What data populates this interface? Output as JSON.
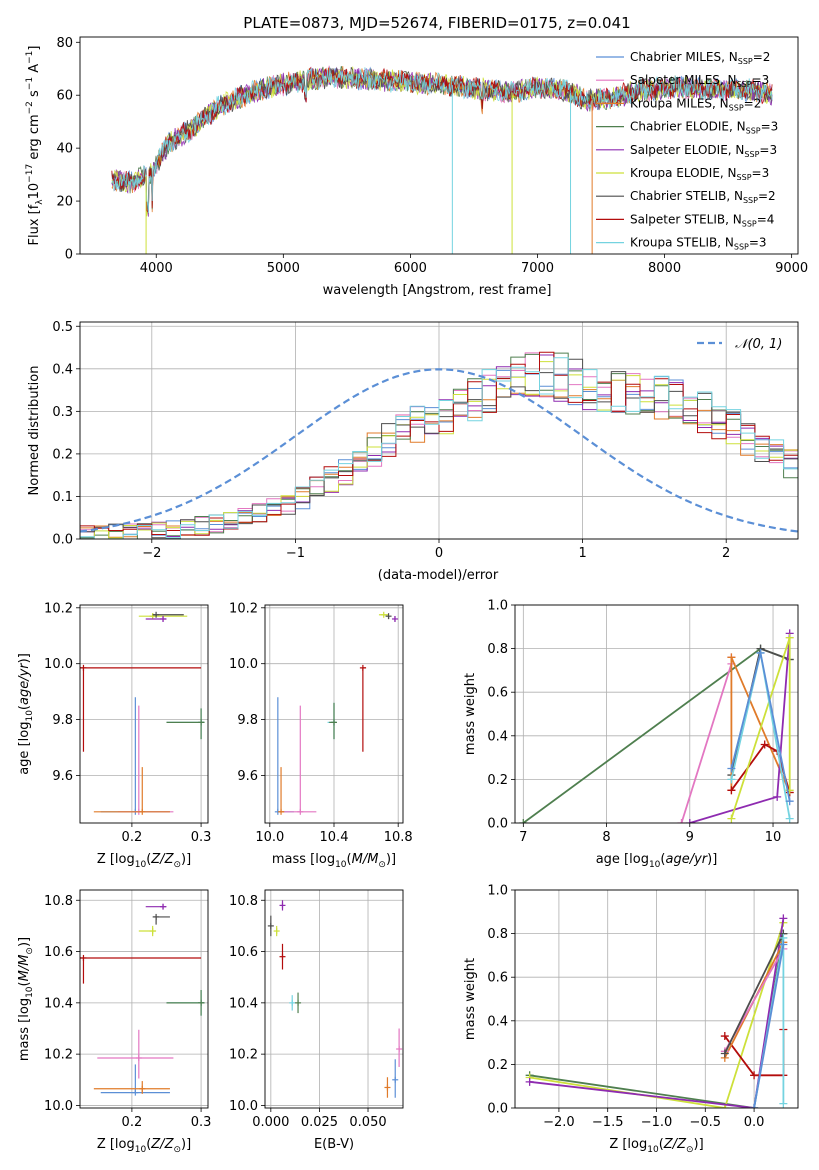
{
  "palette": [
    "#5b8fd6",
    "#e377c2",
    "#e07b2a",
    "#4f7f4f",
    "#8e2bb0",
    "#cde03a",
    "#4d4d4d",
    "#b30c0c",
    "#74d3e0"
  ],
  "chart_data": [
    {
      "id": "spectrum",
      "type": "line",
      "title": "PLATE=0873, MJD=52674, FIBERID=0175, z=0.041",
      "xlabel": "wavelength [Angstrom, rest frame]",
      "ylabel": "Flux [f",
      "xlim": [
        3400,
        9050
      ],
      "ylim": [
        0,
        82
      ],
      "xticks": [
        4000,
        5000,
        6000,
        7000,
        8000,
        9000
      ],
      "yticks": [
        0,
        20,
        40,
        60,
        80
      ],
      "legend_position": "top-right",
      "legend": [
        {
          "name": "Chabrier MILES, N",
          "sub": "SSP",
          "tail": "=2"
        },
        {
          "name": "Salpeter MILES, N",
          "sub": "SSP",
          "tail": "=3"
        },
        {
          "name": "Kroupa MILES, N",
          "sub": "SSP",
          "tail": "=2"
        },
        {
          "name": "Chabrier ELODIE, N",
          "sub": "SSP",
          "tail": "=3"
        },
        {
          "name": "Salpeter ELODIE, N",
          "sub": "SSP",
          "tail": "=3"
        },
        {
          "name": "Kroupa ELODIE, N",
          "sub": "SSP",
          "tail": "=3"
        },
        {
          "name": "Chabrier STELIB, N",
          "sub": "SSP",
          "tail": "=2"
        },
        {
          "name": "Salpeter STELIB, N",
          "sub": "SSP",
          "tail": "=4"
        },
        {
          "name": "Kroupa STELIB, N",
          "sub": "SSP",
          "tail": "=3"
        }
      ],
      "continuum_x": [
        3650,
        3800,
        3950,
        4100,
        4300,
        4500,
        4800,
        5000,
        5200,
        5400,
        5700,
        6000,
        6300,
        6600,
        6800,
        7000,
        7200,
        7400,
        7600,
        7800,
        8100,
        8400,
        8700,
        8850
      ],
      "continuum_y": [
        28,
        27,
        30,
        42,
        48,
        56,
        62,
        64,
        66,
        67,
        66,
        65,
        64,
        62,
        61,
        63,
        62,
        58,
        59,
        62,
        63,
        62,
        62,
        60
      ]
    },
    {
      "id": "residuals",
      "type": "step-histogram",
      "xlabel": "(data-model)/error",
      "ylabel": "Normed distribution",
      "xlim": [
        -2.5,
        2.5
      ],
      "ylim": [
        0,
        0.51
      ],
      "xticks": [
        -2,
        -1,
        0,
        1,
        2
      ],
      "yticks": [
        0.0,
        0.1,
        0.2,
        0.3,
        0.4,
        0.5
      ],
      "grid": true,
      "legend_position": "top-right",
      "reference_label": "𝒩(0, 1)",
      "bins": [
        -2.5,
        -2.4,
        -2.3,
        -2.2,
        -2.1,
        -2.0,
        -1.9,
        -1.8,
        -1.7,
        -1.6,
        -1.5,
        -1.4,
        -1.3,
        -1.2,
        -1.1,
        -1.0,
        -0.9,
        -0.8,
        -0.7,
        -0.6,
        -0.5,
        -0.4,
        -0.3,
        -0.2,
        -0.1,
        0.0,
        0.1,
        0.2,
        0.3,
        0.4,
        0.5,
        0.6,
        0.7,
        0.8,
        0.9,
        1.0,
        1.1,
        1.2,
        1.3,
        1.4,
        1.5,
        1.6,
        1.7,
        1.8,
        1.9,
        2.0,
        2.1,
        2.2,
        2.3,
        2.4,
        2.5
      ],
      "envelope": [
        0.01,
        0.012,
        0.015,
        0.016,
        0.018,
        0.02,
        0.022,
        0.025,
        0.03,
        0.035,
        0.04,
        0.05,
        0.06,
        0.07,
        0.085,
        0.1,
        0.12,
        0.14,
        0.16,
        0.19,
        0.21,
        0.23,
        0.25,
        0.27,
        0.28,
        0.29,
        0.31,
        0.33,
        0.35,
        0.37,
        0.38,
        0.385,
        0.385,
        0.38,
        0.37,
        0.36,
        0.355,
        0.35,
        0.345,
        0.34,
        0.335,
        0.33,
        0.32,
        0.3,
        0.28,
        0.26,
        0.24,
        0.22,
        0.2,
        0.18
      ],
      "amplitude": 0.05
    },
    {
      "id": "age-vs-Z",
      "type": "errorbar",
      "xlabel": "Z [log",
      "ylabel": "age  [log",
      "xlim": [
        0.125,
        0.31
      ],
      "ylim": [
        9.43,
        10.21
      ],
      "xticks": [
        0.2,
        0.3
      ],
      "yticks": [
        9.6,
        9.8,
        10.0,
        10.2
      ],
      "grid": true,
      "points": [
        {
          "c": 8,
          "x": 0.3,
          "y": 9.79,
          "xe": [
            0.05,
            0.005
          ],
          "ye": [
            0.06,
            0.05
          ]
        },
        {
          "c": 3,
          "x": 0.3,
          "y": 9.79,
          "xe": [
            0.05,
            0.005
          ],
          "ye": [
            0.06,
            0.05
          ]
        },
        {
          "c": 7,
          "x": 0.13,
          "y": 9.985,
          "xe": [
            0.005,
            0.17
          ],
          "ye": [
            0.3,
            0.0
          ]
        },
        {
          "c": 0,
          "x": 0.205,
          "y": 9.47,
          "xe": [
            0.05,
            0.05
          ],
          "ye": [
            0.0,
            0.41
          ]
        },
        {
          "c": 1,
          "x": 0.21,
          "y": 9.47,
          "xe": [
            0.03,
            0.05
          ],
          "ye": [
            0.0,
            0.38
          ]
        },
        {
          "c": 2,
          "x": 0.215,
          "y": 9.47,
          "xe": [
            0.07,
            0.04
          ],
          "ye": [
            0.0,
            0.16
          ]
        },
        {
          "c": 5,
          "x": 0.23,
          "y": 10.17,
          "xe": [
            0.02,
            0.05
          ],
          "ye": [
            0.01,
            0.01
          ]
        },
        {
          "c": 4,
          "x": 0.245,
          "y": 10.16,
          "xe": [
            0.025,
            0.005
          ],
          "ye": [
            0.01,
            0.01
          ]
        },
        {
          "c": 6,
          "x": 0.235,
          "y": 10.175,
          "xe": [
            0.005,
            0.04
          ],
          "ye": [
            0.005,
            0.0
          ]
        }
      ]
    },
    {
      "id": "age-vs-mass",
      "type": "errorbar",
      "xlabel": "mass [log",
      "ylabel": "",
      "xlim": [
        9.97,
        10.83
      ],
      "ylim": [
        9.43,
        10.21
      ],
      "xticks": [
        10.0,
        10.4,
        10.8
      ],
      "yticks": [
        9.6,
        9.8,
        10.0,
        10.2
      ],
      "grid": true,
      "points": [
        {
          "c": 8,
          "x": 10.4,
          "y": 9.79,
          "xe": [
            0.04,
            0.01
          ],
          "ye": [
            0.06,
            0.07
          ]
        },
        {
          "c": 3,
          "x": 10.4,
          "y": 9.79,
          "xe": [
            0.03,
            0.01
          ],
          "ye": [
            0.06,
            0.07
          ]
        },
        {
          "c": 7,
          "x": 10.58,
          "y": 9.985,
          "xe": [
            0.0,
            0.02
          ],
          "ye": [
            0.3,
            0.0
          ]
        },
        {
          "c": 0,
          "x": 10.05,
          "y": 9.47,
          "xe": [
            0.0,
            0.1
          ],
          "ye": [
            0.0,
            0.41
          ]
        },
        {
          "c": 1,
          "x": 10.19,
          "y": 9.47,
          "xe": [
            0.13,
            0.1
          ],
          "ye": [
            0.0,
            0.38
          ]
        },
        {
          "c": 2,
          "x": 10.07,
          "y": 9.47,
          "xe": [
            0.01,
            0.02
          ],
          "ye": [
            0.0,
            0.16
          ]
        },
        {
          "c": 5,
          "x": 10.71,
          "y": 10.175,
          "xe": [
            0.03,
            0.03
          ],
          "ye": [
            0.005,
            0.0
          ]
        },
        {
          "c": 4,
          "x": 10.78,
          "y": 10.16,
          "xe": [
            0.0,
            0.0
          ],
          "ye": [
            0.01,
            0.01
          ]
        },
        {
          "c": 6,
          "x": 10.74,
          "y": 10.17,
          "xe": [
            0.0,
            0.0
          ],
          "ye": [
            0.01,
            0.0
          ]
        }
      ]
    },
    {
      "id": "mass-vs-Z",
      "type": "errorbar",
      "xlabel": "Z [log",
      "ylabel": "mass [log",
      "xlim": [
        0.125,
        0.31
      ],
      "ylim": [
        9.99,
        10.84
      ],
      "xticks": [
        0.2,
        0.3
      ],
      "yticks": [
        10.0,
        10.2,
        10.4,
        10.6,
        10.8
      ],
      "grid": true,
      "points": [
        {
          "c": 8,
          "x": 0.3,
          "y": 10.4,
          "xe": [
            0.05,
            0.005
          ],
          "ye": [
            0.05,
            0.05
          ]
        },
        {
          "c": 3,
          "x": 0.3,
          "y": 10.4,
          "xe": [
            0.05,
            0.005
          ],
          "ye": [
            0.05,
            0.05
          ]
        },
        {
          "c": 7,
          "x": 0.13,
          "y": 10.575,
          "xe": [
            0.005,
            0.17
          ],
          "ye": [
            0.1,
            0.0
          ]
        },
        {
          "c": 0,
          "x": 0.205,
          "y": 10.05,
          "xe": [
            0.05,
            0.05
          ],
          "ye": [
            0.0,
            0.11
          ]
        },
        {
          "c": 1,
          "x": 0.21,
          "y": 10.185,
          "xe": [
            0.06,
            0.05
          ],
          "ye": [
            0.08,
            0.11
          ]
        },
        {
          "c": 2,
          "x": 0.215,
          "y": 10.065,
          "xe": [
            0.07,
            0.04
          ],
          "ye": [
            0.02,
            0.03
          ]
        },
        {
          "c": 5,
          "x": 0.23,
          "y": 10.68,
          "xe": [
            0.02,
            0.005
          ],
          "ye": [
            0.02,
            0.02
          ]
        },
        {
          "c": 4,
          "x": 0.245,
          "y": 10.775,
          "xe": [
            0.025,
            0.005
          ],
          "ye": [
            0.01,
            0.01
          ]
        },
        {
          "c": 6,
          "x": 0.235,
          "y": 10.735,
          "xe": [
            0.005,
            0.02
          ],
          "ye": [
            0.03,
            0.0
          ]
        }
      ]
    },
    {
      "id": "mass-vs-ebv",
      "type": "errorbar",
      "xlabel": "E(B-V)",
      "ylabel": "",
      "xlim": [
        -0.003,
        0.068
      ],
      "ylim": [
        9.99,
        10.84
      ],
      "xticks": [
        0.0,
        0.025,
        0.05
      ],
      "yticks": [
        10.0,
        10.2,
        10.4,
        10.6,
        10.8
      ],
      "grid": true,
      "points": [
        {
          "c": 8,
          "x": 0.011,
          "y": 10.4,
          "xe": [
            0.0,
            0.0
          ],
          "ye": [
            0.03,
            0.03
          ]
        },
        {
          "c": 3,
          "x": 0.014,
          "y": 10.4,
          "xe": [
            0.0,
            0.0
          ],
          "ye": [
            0.04,
            0.04
          ]
        },
        {
          "c": 7,
          "x": 0.006,
          "y": 10.58,
          "xe": [
            0.0,
            0.0
          ],
          "ye": [
            0.05,
            0.05
          ]
        },
        {
          "c": 0,
          "x": 0.064,
          "y": 10.1,
          "xe": [
            0.0,
            0.0
          ],
          "ye": [
            0.07,
            0.08
          ]
        },
        {
          "c": 1,
          "x": 0.066,
          "y": 10.22,
          "xe": [
            0.0,
            0.0
          ],
          "ye": [
            0.07,
            0.08
          ]
        },
        {
          "c": 2,
          "x": 0.06,
          "y": 10.07,
          "xe": [
            0.0,
            0.0
          ],
          "ye": [
            0.04,
            0.04
          ]
        },
        {
          "c": 5,
          "x": 0.003,
          "y": 10.68,
          "xe": [
            0.0,
            0.0
          ],
          "ye": [
            0.02,
            0.02
          ]
        },
        {
          "c": 4,
          "x": 0.006,
          "y": 10.78,
          "xe": [
            0.0,
            0.0
          ],
          "ye": [
            0.02,
            0.02
          ]
        },
        {
          "c": 6,
          "x": 0.0,
          "y": 10.7,
          "xe": [
            0.0,
            0.0
          ],
          "ye": [
            0.04,
            0.04
          ]
        }
      ]
    },
    {
      "id": "mass-weight-vs-age",
      "type": "line",
      "xlabel": "age  [log",
      "ylabel": "mass weight",
      "xlim": [
        6.9,
        10.3
      ],
      "ylim": [
        0.0,
        1.0
      ],
      "xticks": [
        7,
        8,
        9,
        10
      ],
      "yticks": [
        0.0,
        0.2,
        0.4,
        0.6,
        0.8,
        1.0
      ],
      "grid": true,
      "series": [
        {
          "c": 3,
          "x": [
            7.0,
            9.85,
            10.2
          ],
          "y": [
            0.0,
            0.8,
            0.75
          ]
        },
        {
          "c": 6,
          "x": [
            9.5,
            9.85,
            10.2
          ],
          "y": [
            0.22,
            0.8,
            0.75
          ]
        },
        {
          "c": 1,
          "x": [
            8.9,
            9.5,
            9.5
          ],
          "y": [
            0.0,
            0.73,
            0.76
          ]
        },
        {
          "c": 2,
          "x": [
            9.5,
            9.5,
            10.2
          ],
          "y": [
            0.15,
            0.76,
            0.14
          ]
        },
        {
          "c": 7,
          "x": [
            9.5,
            9.9,
            10.05,
            10.2
          ],
          "y": [
            0.15,
            0.36,
            0.33,
            0.14
          ]
        },
        {
          "c": 4,
          "x": [
            9.0,
            10.05,
            10.2
          ],
          "y": [
            0.0,
            0.12,
            0.87
          ]
        },
        {
          "c": 5,
          "x": [
            9.5,
            10.2,
            10.2
          ],
          "y": [
            0.02,
            0.85,
            0.15
          ]
        },
        {
          "c": 8,
          "x": [
            9.5,
            9.85,
            10.2
          ],
          "y": [
            0.2,
            0.78,
            0.02
          ]
        },
        {
          "c": 0,
          "x": [
            9.5,
            9.85,
            10.2
          ],
          "y": [
            0.25,
            0.78,
            0.1
          ]
        }
      ]
    },
    {
      "id": "mass-weight-vs-Z",
      "type": "line",
      "xlabel": "Z [log",
      "ylabel": "mass weight",
      "xlim": [
        -2.45,
        0.45
      ],
      "ylim": [
        0.0,
        1.0
      ],
      "xticks": [
        -2.0,
        -1.5,
        -1.0,
        -0.5,
        0.0
      ],
      "yticks": [
        0.0,
        0.2,
        0.4,
        0.6,
        0.8,
        1.0
      ],
      "grid": true,
      "series": [
        {
          "c": 3,
          "x": [
            -2.3,
            0.0,
            0.3
          ],
          "y": [
            0.15,
            0.0,
            0.8
          ]
        },
        {
          "c": 5,
          "x": [
            -2.3,
            -0.3,
            0.3
          ],
          "y": [
            0.14,
            0.0,
            0.85
          ]
        },
        {
          "c": 4,
          "x": [
            -2.3,
            0.0,
            0.3
          ],
          "y": [
            0.12,
            0.0,
            0.87
          ]
        },
        {
          "c": 7,
          "x": [
            -0.3,
            0.0,
            0.3,
            0.3
          ],
          "y": [
            0.33,
            0.15,
            0.15,
            0.36
          ]
        },
        {
          "c": 2,
          "x": [
            -0.3,
            0.3
          ],
          "y": [
            0.23,
            0.76
          ]
        },
        {
          "c": 1,
          "x": [
            -0.3,
            0.3
          ],
          "y": [
            0.26,
            0.73
          ]
        },
        {
          "c": 6,
          "x": [
            -0.3,
            0.3
          ],
          "y": [
            0.25,
            0.8
          ]
        },
        {
          "c": 8,
          "x": [
            0.0,
            0.3,
            0.3
          ],
          "y": [
            0.0,
            0.78,
            0.02
          ]
        },
        {
          "c": 0,
          "x": [
            0.0,
            0.3
          ],
          "y": [
            0.0,
            0.75
          ]
        }
      ]
    }
  ]
}
